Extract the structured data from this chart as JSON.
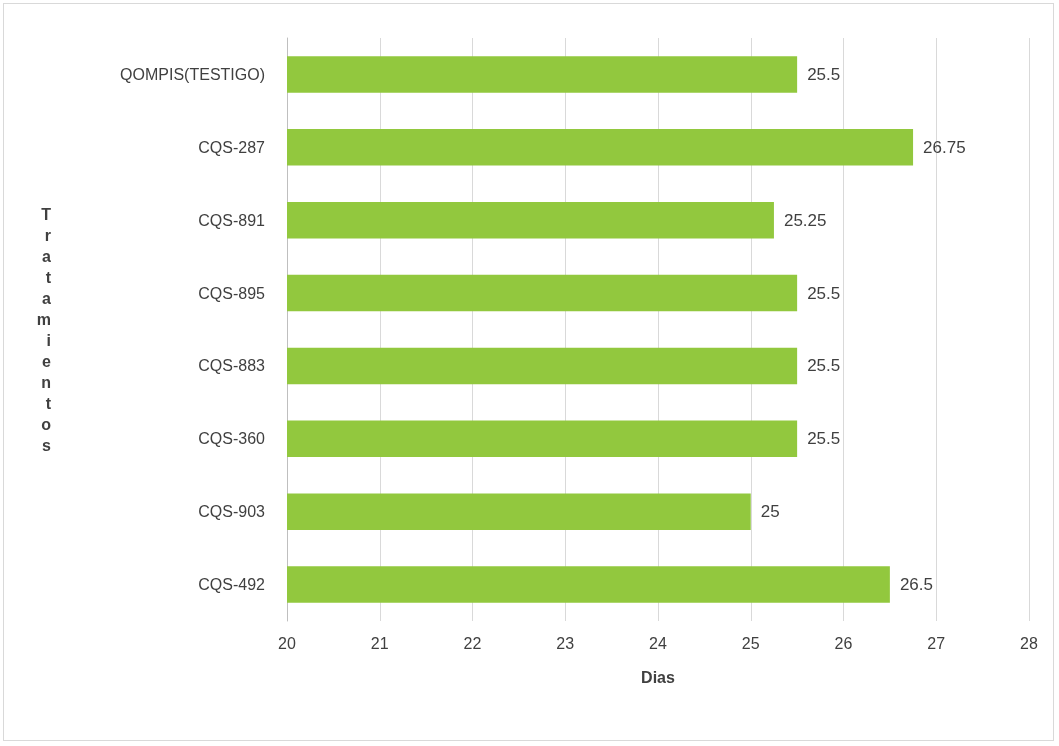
{
  "chart_data": {
    "type": "bar",
    "orientation": "horizontal",
    "categories": [
      "QOMPIS(TESTIGO)",
      "CQS-287",
      "CQS-891",
      "CQS-895",
      "CQS-883",
      "CQS-360",
      "CQS-903",
      "CQS-492"
    ],
    "values": [
      25.5,
      26.75,
      25.25,
      25.5,
      25.5,
      25.5,
      25,
      26.5
    ],
    "color": "#92c83e",
    "xlim": [
      20,
      28
    ],
    "xticks": [
      20,
      21,
      22,
      23,
      24,
      25,
      26,
      27,
      28
    ],
    "xlabel": "Dias",
    "ylabel": "Tratamientos",
    "grid": "x",
    "data_labels": true
  }
}
